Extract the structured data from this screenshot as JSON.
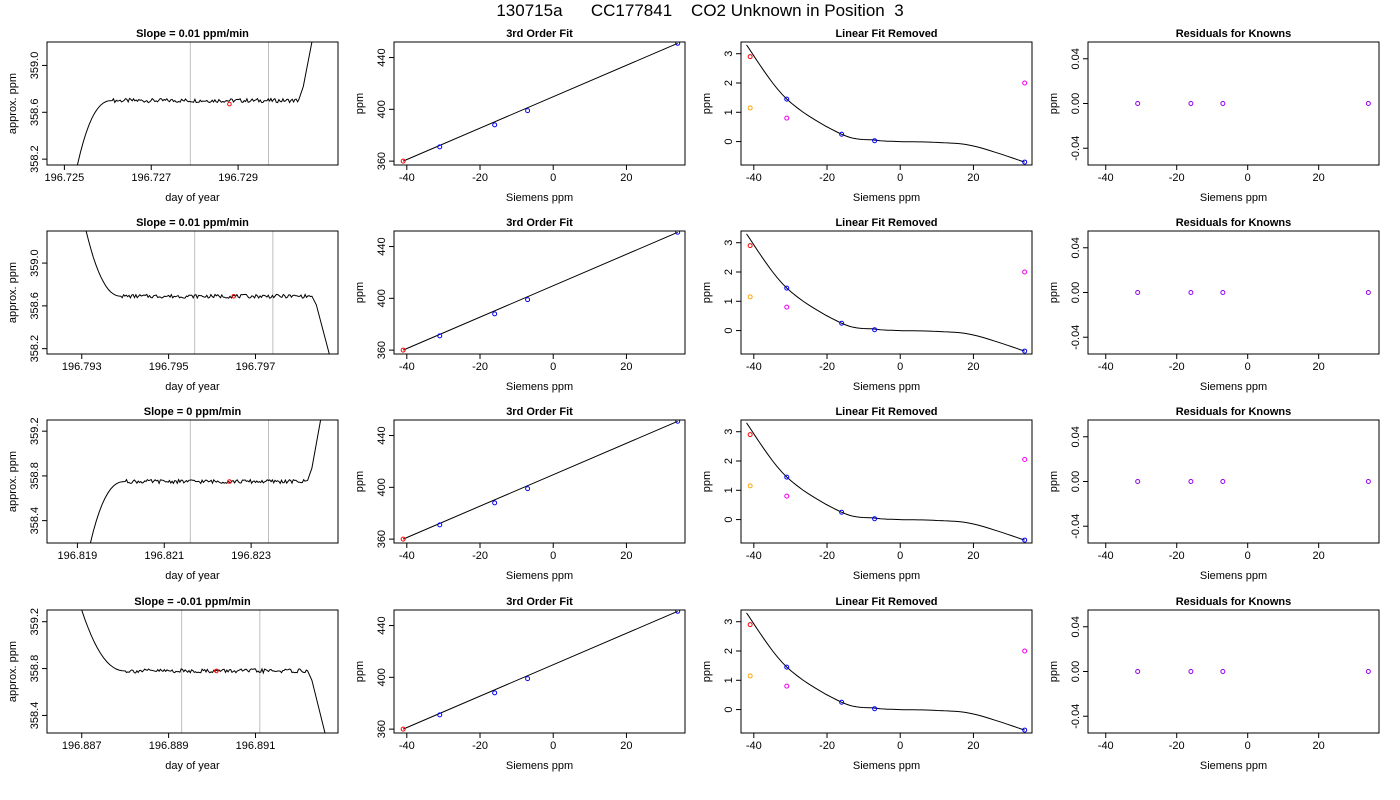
{
  "title": "130715a      CC177841    CO2 Unknown in Position  3",
  "colors": {
    "axis": "#000000",
    "trace": "#000000",
    "vline": "#bebebe",
    "point_red": "#ff0000",
    "point_blue": "#0000ff",
    "point_orange": "#ffa500",
    "point_magenta": "#ee00ee",
    "point_purple": "#9000f0"
  },
  "chart_data": [
    {
      "type": "line",
      "title": "Slope =  0.01  ppm/min",
      "xlabel": "day of year",
      "ylabel": "approx. ppm",
      "xlim": [
        196.7246,
        196.7313
      ],
      "ylim": [
        358.15,
        359.2
      ],
      "xticks": [
        196.725,
        196.727,
        196.729
      ],
      "xticklabels": [
        "196.725",
        "196.727",
        "196.729"
      ],
      "yticks": [
        358.2,
        358.6,
        359.0
      ],
      "yticklabels": [
        "358.2",
        "358.6",
        "359.0"
      ],
      "vlines": [
        196.7279,
        196.7297
      ],
      "marker": {
        "x": 196.7288,
        "y": 358.67
      },
      "trace": {
        "t0": 196.7261,
        "t1": 196.7304,
        "base": 358.7,
        "rise": [
          196.7253,
          196.7258
        ],
        "fall": null,
        "start_y": 358.15,
        "end_y": 359.2
      }
    },
    {
      "type": "scatter",
      "title": "3rd Order Fit",
      "xlabel": "Siemens ppm",
      "ylabel": "ppm",
      "xlim": [
        -43.5,
        36
      ],
      "ylim": [
        357,
        452
      ],
      "xticks": [
        -40,
        -20,
        0,
        20
      ],
      "xticklabels": [
        "-40",
        "-20",
        "0",
        "20"
      ],
      "yticks": [
        360,
        400,
        440
      ],
      "yticklabels": [
        "360",
        "400",
        "440"
      ],
      "fit_line": [
        [
          -41,
          360
        ],
        [
          34,
          451
        ]
      ],
      "points": [
        {
          "x": -41,
          "y": 360,
          "c": "point_red"
        },
        {
          "x": -31,
          "y": 371,
          "c": "point_blue"
        },
        {
          "x": -16,
          "y": 388,
          "c": "point_blue"
        },
        {
          "x": -7,
          "y": 399,
          "c": "point_blue"
        },
        {
          "x": 34,
          "y": 451,
          "c": "point_blue"
        }
      ]
    },
    {
      "type": "scatter",
      "title": "Linear Fit Removed",
      "xlabel": "Siemens ppm",
      "ylabel": "ppm",
      "xlim": [
        -43.5,
        36
      ],
      "ylim": [
        -0.8,
        3.4
      ],
      "xticks": [
        -40,
        -20,
        0,
        20
      ],
      "xticklabels": [
        "-40",
        "-20",
        "0",
        "20"
      ],
      "yticks": [
        0,
        1,
        2,
        3
      ],
      "yticklabels": [
        "0",
        "1",
        "2",
        "3"
      ],
      "curve": [
        [
          -42,
          3.3
        ],
        [
          -31,
          1.45
        ],
        [
          -16,
          0.25
        ],
        [
          -7,
          0.05
        ],
        [
          0,
          0.0
        ],
        [
          10,
          -0.03
        ],
        [
          20,
          -0.15
        ],
        [
          34,
          -0.7
        ]
      ],
      "points": [
        {
          "x": -41,
          "y": 2.9,
          "c": "point_red"
        },
        {
          "x": -41,
          "y": 1.15,
          "c": "point_orange"
        },
        {
          "x": -31,
          "y": 1.45,
          "c": "point_blue"
        },
        {
          "x": -31,
          "y": 0.8,
          "c": "point_magenta"
        },
        {
          "x": -16,
          "y": 0.25,
          "c": "point_blue"
        },
        {
          "x": -7,
          "y": 0.03,
          "c": "point_blue"
        },
        {
          "x": 34,
          "y": 2.0,
          "c": "point_magenta"
        },
        {
          "x": 34,
          "y": -0.7,
          "c": "point_blue"
        }
      ]
    },
    {
      "type": "scatter",
      "title": "Residuals for Knowns",
      "xlabel": "Siemens ppm",
      "ylabel": "ppm",
      "xlim": [
        -45,
        37
      ],
      "ylim": [
        -0.055,
        0.055
      ],
      "xticks": [
        -40,
        -20,
        0,
        20
      ],
      "xticklabels": [
        "-40",
        "-20",
        "0",
        "20"
      ],
      "yticks": [
        -0.04,
        0.0,
        0.04
      ],
      "yticklabels": [
        "-0.04",
        "0.00",
        "0.04"
      ],
      "points": [
        {
          "x": -31,
          "y": 0,
          "c": "point_purple"
        },
        {
          "x": -16,
          "y": 0,
          "c": "point_purple"
        },
        {
          "x": -7,
          "y": 0,
          "c": "point_purple"
        },
        {
          "x": 34,
          "y": 0,
          "c": "point_purple"
        }
      ]
    },
    {
      "type": "line",
      "title": "Slope =  0.01  ppm/min",
      "xlabel": "day of year",
      "ylabel": "approx. ppm",
      "xlim": [
        196.7922,
        196.7989
      ],
      "ylim": [
        358.15,
        359.3
      ],
      "xticks": [
        196.793,
        196.795,
        196.797
      ],
      "xticklabels": [
        "196.793",
        "196.795",
        "196.797"
      ],
      "yticks": [
        358.2,
        358.6,
        359.0
      ],
      "yticklabels": [
        "358.2",
        "358.6",
        "359.0"
      ],
      "vlines": [
        196.7956,
        196.7974
      ],
      "marker": {
        "x": 196.7965,
        "y": 358.69
      },
      "trace": {
        "t0": 196.7939,
        "t1": 196.7983,
        "base": 358.69,
        "rise": null,
        "fall": [
          196.7983,
          196.7987
        ],
        "start_y": 359.3,
        "end_y": 358.15,
        "drop": [
          196.7931,
          196.7937
        ]
      }
    },
    {
      "type": "scatter",
      "title": "3rd Order Fit",
      "xlabel": "Siemens ppm",
      "ylabel": "ppm",
      "xlim": [
        -43.5,
        36
      ],
      "ylim": [
        357,
        452
      ],
      "xticks": [
        -40,
        -20,
        0,
        20
      ],
      "xticklabels": [
        "-40",
        "-20",
        "0",
        "20"
      ],
      "yticks": [
        360,
        400,
        440
      ],
      "yticklabels": [
        "360",
        "400",
        "440"
      ],
      "fit_line": [
        [
          -41,
          360
        ],
        [
          34,
          451
        ]
      ],
      "points": [
        {
          "x": -41,
          "y": 360,
          "c": "point_red"
        },
        {
          "x": -31,
          "y": 371,
          "c": "point_blue"
        },
        {
          "x": -16,
          "y": 388,
          "c": "point_blue"
        },
        {
          "x": -7,
          "y": 399,
          "c": "point_blue"
        },
        {
          "x": 34,
          "y": 451,
          "c": "point_blue"
        }
      ]
    },
    {
      "type": "scatter",
      "title": "Linear Fit Removed",
      "xlabel": "Siemens ppm",
      "ylabel": "ppm",
      "xlim": [
        -43.5,
        36
      ],
      "ylim": [
        -0.8,
        3.4
      ],
      "xticks": [
        -40,
        -20,
        0,
        20
      ],
      "xticklabels": [
        "-40",
        "-20",
        "0",
        "20"
      ],
      "yticks": [
        0,
        1,
        2,
        3
      ],
      "yticklabels": [
        "0",
        "1",
        "2",
        "3"
      ],
      "curve": [
        [
          -42,
          3.3
        ],
        [
          -31,
          1.45
        ],
        [
          -16,
          0.25
        ],
        [
          -7,
          0.05
        ],
        [
          0,
          0.0
        ],
        [
          10,
          -0.03
        ],
        [
          20,
          -0.15
        ],
        [
          34,
          -0.7
        ]
      ],
      "points": [
        {
          "x": -41,
          "y": 2.9,
          "c": "point_red"
        },
        {
          "x": -41,
          "y": 1.15,
          "c": "point_orange"
        },
        {
          "x": -31,
          "y": 1.45,
          "c": "point_blue"
        },
        {
          "x": -31,
          "y": 0.8,
          "c": "point_magenta"
        },
        {
          "x": -16,
          "y": 0.25,
          "c": "point_blue"
        },
        {
          "x": -7,
          "y": 0.03,
          "c": "point_blue"
        },
        {
          "x": 34,
          "y": 2.0,
          "c": "point_magenta"
        },
        {
          "x": 34,
          "y": -0.7,
          "c": "point_blue"
        }
      ]
    },
    {
      "type": "scatter",
      "title": "Residuals for Knowns",
      "xlabel": "Siemens ppm",
      "ylabel": "ppm",
      "xlim": [
        -45,
        37
      ],
      "ylim": [
        -0.055,
        0.055
      ],
      "xticks": [
        -40,
        -20,
        0,
        20
      ],
      "xticklabels": [
        "-40",
        "-20",
        "0",
        "20"
      ],
      "yticks": [
        -0.04,
        0.0,
        0.04
      ],
      "yticklabels": [
        "-0.04",
        "0.00",
        "0.04"
      ],
      "points": [
        {
          "x": -31,
          "y": 0,
          "c": "point_purple"
        },
        {
          "x": -16,
          "y": 0,
          "c": "point_purple"
        },
        {
          "x": -7,
          "y": 0,
          "c": "point_purple"
        },
        {
          "x": 34,
          "y": 0,
          "c": "point_purple"
        }
      ]
    },
    {
      "type": "line",
      "title": "Slope =  0  ppm/min",
      "xlabel": "day of year",
      "ylabel": "approx. ppm",
      "xlim": [
        196.8183,
        196.825
      ],
      "ylim": [
        358.2,
        359.3
      ],
      "xticks": [
        196.819,
        196.821,
        196.823
      ],
      "xticklabels": [
        "196.819",
        "196.821",
        "196.823"
      ],
      "yticks": [
        358.4,
        358.8,
        359.2
      ],
      "yticklabels": [
        "358.4",
        "358.8",
        "359.2"
      ],
      "vlines": [
        196.8216,
        196.8234
      ],
      "marker": {
        "x": 196.8225,
        "y": 358.75
      },
      "trace": {
        "t0": 196.8201,
        "t1": 196.8243,
        "base": 358.75,
        "rise": [
          196.8193,
          196.8198
        ],
        "fall": null,
        "start_y": 358.2,
        "end_y": 359.3
      }
    },
    {
      "type": "scatter",
      "title": "3rd Order Fit",
      "xlabel": "Siemens ppm",
      "ylabel": "ppm",
      "xlim": [
        -43.5,
        36
      ],
      "ylim": [
        357,
        452
      ],
      "xticks": [
        -40,
        -20,
        0,
        20
      ],
      "xticklabels": [
        "-40",
        "-20",
        "0",
        "20"
      ],
      "yticks": [
        360,
        400,
        440
      ],
      "yticklabels": [
        "360",
        "400",
        "440"
      ],
      "fit_line": [
        [
          -41,
          360
        ],
        [
          34,
          451
        ]
      ],
      "points": [
        {
          "x": -41,
          "y": 360,
          "c": "point_red"
        },
        {
          "x": -31,
          "y": 371,
          "c": "point_blue"
        },
        {
          "x": -16,
          "y": 388,
          "c": "point_blue"
        },
        {
          "x": -7,
          "y": 399,
          "c": "point_blue"
        },
        {
          "x": 34,
          "y": 451,
          "c": "point_blue"
        }
      ]
    },
    {
      "type": "scatter",
      "title": "Linear Fit Removed",
      "xlabel": "Siemens ppm",
      "ylabel": "ppm",
      "xlim": [
        -43.5,
        36
      ],
      "ylim": [
        -0.8,
        3.4
      ],
      "xticks": [
        -40,
        -20,
        0,
        20
      ],
      "xticklabels": [
        "-40",
        "-20",
        "0",
        "20"
      ],
      "yticks": [
        0,
        1,
        2,
        3
      ],
      "yticklabels": [
        "0",
        "1",
        "2",
        "3"
      ],
      "curve": [
        [
          -42,
          3.3
        ],
        [
          -31,
          1.45
        ],
        [
          -16,
          0.25
        ],
        [
          -7,
          0.05
        ],
        [
          0,
          0.0
        ],
        [
          10,
          -0.03
        ],
        [
          20,
          -0.15
        ],
        [
          34,
          -0.7
        ]
      ],
      "points": [
        {
          "x": -41,
          "y": 2.9,
          "c": "point_red"
        },
        {
          "x": -41,
          "y": 1.15,
          "c": "point_orange"
        },
        {
          "x": -31,
          "y": 1.45,
          "c": "point_blue"
        },
        {
          "x": -31,
          "y": 0.8,
          "c": "point_magenta"
        },
        {
          "x": -16,
          "y": 0.25,
          "c": "point_blue"
        },
        {
          "x": -7,
          "y": 0.03,
          "c": "point_blue"
        },
        {
          "x": 34,
          "y": 2.05,
          "c": "point_magenta"
        },
        {
          "x": 34,
          "y": -0.7,
          "c": "point_blue"
        }
      ]
    },
    {
      "type": "scatter",
      "title": "Residuals for Knowns",
      "xlabel": "Siemens ppm",
      "ylabel": "ppm",
      "xlim": [
        -45,
        37
      ],
      "ylim": [
        -0.055,
        0.055
      ],
      "xticks": [
        -40,
        -20,
        0,
        20
      ],
      "xticklabels": [
        "-40",
        "-20",
        "0",
        "20"
      ],
      "yticks": [
        -0.04,
        0.0,
        0.04
      ],
      "yticklabels": [
        "-0.04",
        "0.00",
        "0.04"
      ],
      "points": [
        {
          "x": -31,
          "y": 0,
          "c": "point_purple"
        },
        {
          "x": -16,
          "y": 0,
          "c": "point_purple"
        },
        {
          "x": -7,
          "y": 0,
          "c": "point_purple"
        },
        {
          "x": 34,
          "y": 0,
          "c": "point_purple"
        }
      ]
    },
    {
      "type": "line",
      "title": "Slope =  -0.01  ppm/min",
      "xlabel": "day of year",
      "ylabel": "approx. ppm",
      "xlim": [
        196.8862,
        196.8929
      ],
      "ylim": [
        358.25,
        359.3
      ],
      "xticks": [
        196.887,
        196.889,
        196.891
      ],
      "xticklabels": [
        "196.887",
        "196.889",
        "196.891"
      ],
      "yticks": [
        358.4,
        358.8,
        359.2
      ],
      "yticklabels": [
        "358.4",
        "358.8",
        "359.2"
      ],
      "vlines": [
        196.8893,
        196.8911
      ],
      "marker": {
        "x": 196.8901,
        "y": 358.78
      },
      "trace": {
        "t0": 196.888,
        "t1": 196.8922,
        "base": 358.78,
        "rise": null,
        "fall": [
          196.8922,
          196.8926
        ],
        "start_y": 359.3,
        "end_y": 358.25,
        "drop": [
          196.887,
          196.8877
        ]
      }
    },
    {
      "type": "scatter",
      "title": "3rd Order Fit",
      "xlabel": "Siemens ppm",
      "ylabel": "ppm",
      "xlim": [
        -43.5,
        36
      ],
      "ylim": [
        357,
        452
      ],
      "xticks": [
        -40,
        -20,
        0,
        20
      ],
      "xticklabels": [
        "-40",
        "-20",
        "0",
        "20"
      ],
      "yticks": [
        360,
        400,
        440
      ],
      "yticklabels": [
        "360",
        "400",
        "440"
      ],
      "fit_line": [
        [
          -41,
          360
        ],
        [
          34,
          451
        ]
      ],
      "points": [
        {
          "x": -41,
          "y": 360,
          "c": "point_red"
        },
        {
          "x": -31,
          "y": 371,
          "c": "point_blue"
        },
        {
          "x": -16,
          "y": 388,
          "c": "point_blue"
        },
        {
          "x": -7,
          "y": 399,
          "c": "point_blue"
        },
        {
          "x": 34,
          "y": 451,
          "c": "point_blue"
        }
      ]
    },
    {
      "type": "scatter",
      "title": "Linear Fit Removed",
      "xlabel": "Siemens ppm",
      "ylabel": "ppm",
      "xlim": [
        -43.5,
        36
      ],
      "ylim": [
        -0.8,
        3.4
      ],
      "xticks": [
        -40,
        -20,
        0,
        20
      ],
      "xticklabels": [
        "-40",
        "-20",
        "0",
        "20"
      ],
      "yticks": [
        0,
        1,
        2,
        3
      ],
      "yticklabels": [
        "0",
        "1",
        "2",
        "3"
      ],
      "curve": [
        [
          -42,
          3.3
        ],
        [
          -31,
          1.45
        ],
        [
          -16,
          0.25
        ],
        [
          -7,
          0.05
        ],
        [
          0,
          0.0
        ],
        [
          10,
          -0.03
        ],
        [
          20,
          -0.15
        ],
        [
          34,
          -0.7
        ]
      ],
      "points": [
        {
          "x": -41,
          "y": 2.9,
          "c": "point_red"
        },
        {
          "x": -41,
          "y": 1.15,
          "c": "point_orange"
        },
        {
          "x": -31,
          "y": 1.45,
          "c": "point_blue"
        },
        {
          "x": -31,
          "y": 0.8,
          "c": "point_magenta"
        },
        {
          "x": -16,
          "y": 0.25,
          "c": "point_blue"
        },
        {
          "x": -7,
          "y": 0.03,
          "c": "point_blue"
        },
        {
          "x": 34,
          "y": 2.0,
          "c": "point_magenta"
        },
        {
          "x": 34,
          "y": -0.7,
          "c": "point_blue"
        }
      ]
    },
    {
      "type": "scatter",
      "title": "Residuals for Knowns",
      "xlabel": "Siemens ppm",
      "ylabel": "ppm",
      "xlim": [
        -45,
        37
      ],
      "ylim": [
        -0.055,
        0.055
      ],
      "xticks": [
        -40,
        -20,
        0,
        20
      ],
      "xticklabels": [
        "-40",
        "-20",
        "0",
        "20"
      ],
      "yticks": [
        -0.04,
        0.0,
        0.04
      ],
      "yticklabels": [
        "-0.04",
        "0.00",
        "0.04"
      ],
      "points": [
        {
          "x": -31,
          "y": 0,
          "c": "point_purple"
        },
        {
          "x": -16,
          "y": 0,
          "c": "point_purple"
        },
        {
          "x": -7,
          "y": 0,
          "c": "point_purple"
        },
        {
          "x": 34,
          "y": 0,
          "c": "point_purple"
        }
      ]
    }
  ]
}
